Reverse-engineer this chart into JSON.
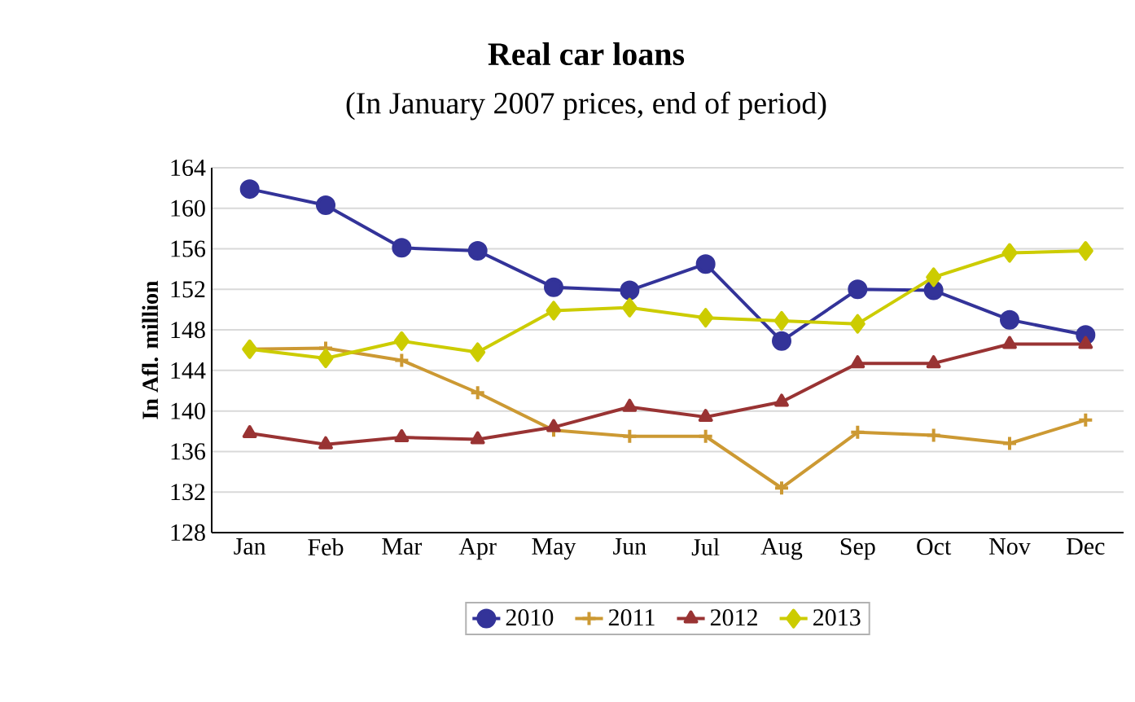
{
  "chart_data": {
    "type": "line",
    "title": "Real car loans",
    "subtitle": "(In January 2007 prices, end of period)",
    "ylabel": "In Afl. million",
    "categories": [
      "Jan",
      "Feb",
      "Mar",
      "Apr",
      "May",
      "Jun",
      "Jul",
      "Aug",
      "Sep",
      "Oct",
      "Nov",
      "Dec"
    ],
    "series": [
      {
        "name": "2010",
        "color": "#333399",
        "marker": "circle",
        "values": [
          161.9,
          160.3,
          156.1,
          155.8,
          152.2,
          151.9,
          154.5,
          146.9,
          152.0,
          151.9,
          149.0,
          147.5
        ]
      },
      {
        "name": "2011",
        "color": "#cc9933",
        "marker": "cross",
        "values": [
          146.1,
          146.2,
          145.0,
          141.8,
          138.1,
          137.5,
          137.5,
          132.4,
          137.9,
          137.6,
          136.8,
          139.1
        ]
      },
      {
        "name": "2012",
        "color": "#993333",
        "marker": "triangle",
        "values": [
          137.8,
          136.7,
          137.4,
          137.2,
          138.4,
          140.4,
          139.4,
          140.9,
          144.7,
          144.7,
          146.6,
          146.6
        ]
      },
      {
        "name": "2013",
        "color": "#cccc00",
        "marker": "diamond",
        "values": [
          146.1,
          145.2,
          146.9,
          145.8,
          149.9,
          150.2,
          149.2,
          148.9,
          148.6,
          153.2,
          155.6,
          155.8
        ]
      }
    ],
    "ylim": [
      128,
      164
    ],
    "yticks": [
      128,
      132,
      136,
      140,
      144,
      148,
      152,
      156,
      160,
      164
    ],
    "grid": "y",
    "legend": "bottom",
    "line_style": "solid"
  }
}
